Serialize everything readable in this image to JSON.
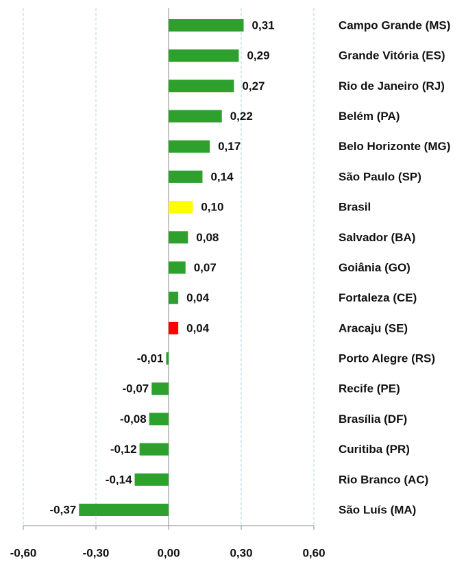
{
  "chart_data": {
    "type": "hbar",
    "categories": [
      "Campo Grande (MS)",
      "Grande Vitória (ES)",
      "Rio de Janeiro (RJ)",
      "Belém (PA)",
      "Belo Horizonte (MG)",
      "São Paulo (SP)",
      "Brasil",
      "Salvador (BA)",
      "Goiânia (GO)",
      "Fortaleza (CE)",
      "Aracaju (SE)",
      "Porto Alegre (RS)",
      "Recife (PE)",
      "Brasília (DF)",
      "Curitiba (PR)",
      "Rio Branco (AC)",
      "São Luís (MA)"
    ],
    "values": [
      0.31,
      0.29,
      0.27,
      0.22,
      0.17,
      0.14,
      0.1,
      0.08,
      0.07,
      0.04,
      0.04,
      -0.01,
      -0.07,
      -0.08,
      -0.12,
      -0.14,
      -0.37
    ],
    "value_labels": [
      "0,31",
      "0,29",
      "0,27",
      "0,22",
      "0,17",
      "0,14",
      "0,10",
      "0,08",
      "0,07",
      "0,04",
      "0,04",
      "-0,01",
      "-0,07",
      "-0,08",
      "-0,12",
      "-0,14",
      "-0,37"
    ],
    "colors": [
      "#2ea02e",
      "#2ea02e",
      "#2ea02e",
      "#2ea02e",
      "#2ea02e",
      "#2ea02e",
      "#ffff00",
      "#2ea02e",
      "#2ea02e",
      "#2ea02e",
      "#ff0000",
      "#2ea02e",
      "#2ea02e",
      "#2ea02e",
      "#2ea02e",
      "#2ea02e",
      "#2ea02e"
    ],
    "xlim": [
      -0.6,
      0.6
    ],
    "xticks": [
      {
        "value": -0.6,
        "label": "-0,60"
      },
      {
        "value": -0.3,
        "label": "-0,30"
      },
      {
        "value": 0,
        "label": "0,00"
      },
      {
        "value": 0.3,
        "label": "0,30"
      },
      {
        "value": 0.6,
        "label": "0,60"
      }
    ],
    "grid": true
  }
}
